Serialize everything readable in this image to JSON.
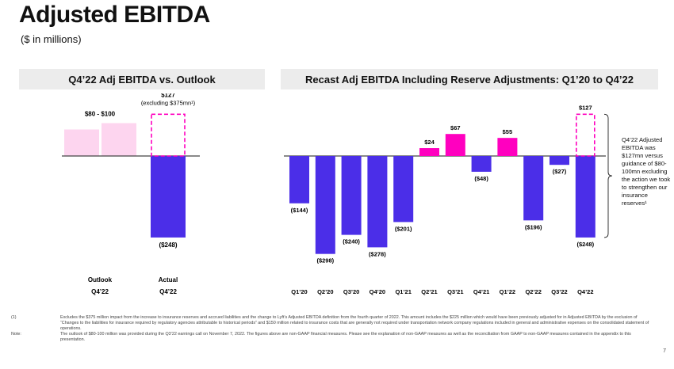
{
  "page": {
    "title": "Adjusted EBITDA",
    "subtitle": "($ in millions)",
    "page_number": "7"
  },
  "panels": {
    "left_title": "Q4’22 Adj EBITDA vs. Outlook",
    "right_title": "Recast Adj EBITDA Including Reserve Adjustments: Q1’20 to Q4’22"
  },
  "colors": {
    "negative_bar": "#4b2ee8",
    "positive_bar": "#ff00bf",
    "outlook_bar": "#fdd5ef",
    "dashed_outline": "#ff00bf",
    "baseline": "#444444"
  },
  "side_note": "Q4’22 Adjusted EBITDA was $127mn versus guidance of $80-100mn excluding the action we took to strengthen our insurance reserves¹",
  "footnotes": [
    {
      "mark": "(1)",
      "text": "Excludes the $375 million impact from the increase to insurance reserves and accrued liabilities and the change to Lyft’s Adjusted EBITDA definition from the fourth quarter of 2022. This amount includes the $225 million which would have been previously adjusted for in Adjusted EBITDA by the exclusion of “Changes to the liabilities for insurance required by regulatory agencies attributable to historical periods” and $150 million related to insurance costs that are generally not required under transportation network company regulations included in general and administrative expenses on the consolidated statement of operations."
    },
    {
      "mark": "Note:",
      "text": "The outlook of $80-100 million was provided during the Q3’22 earnings call on November 7, 2022. The figures above are non-GAAP financial measures. Please see the explanation of non-GAAP measures as well as the reconciliation from GAAP to non-GAAP measures contained in the appendix to this presentation."
    }
  ],
  "chart_data": [
    {
      "type": "bar",
      "title": "Q4’22 Adj EBITDA vs. Outlook",
      "categories": [
        "Outlook",
        "Actual"
      ],
      "sub_categories": [
        "Q4’22",
        "Q4’22"
      ],
      "outlook_range": [
        80,
        100
      ],
      "outlook_label": "$80 - $100",
      "actual_value": -248,
      "actual_label": "($248)",
      "actual_excluding_value": 127,
      "actual_excluding_label_line1": "$127",
      "actual_excluding_label_line2": "(excluding $375mn¹)"
    },
    {
      "type": "bar",
      "title": "Recast Adj EBITDA Including Reserve Adjustments: Q1’20 to Q4’22",
      "categories": [
        "Q1’20",
        "Q2’20",
        "Q3’20",
        "Q4’20",
        "Q1’21",
        "Q2’21",
        "Q3’21",
        "Q4’21",
        "Q1’22",
        "Q2’22",
        "Q3’22",
        "Q4’22"
      ],
      "values": [
        -144,
        -298,
        -240,
        -278,
        -201,
        24,
        67,
        -48,
        55,
        -196,
        -27,
        -248
      ],
      "labels": [
        "($144)",
        "($298)",
        "($240)",
        "($278)",
        "($201)",
        "$24",
        "$67",
        "($48)",
        "$55",
        "($196)",
        "($27)",
        "($248)"
      ],
      "q4_22_excluding_value": 127,
      "q4_22_excluding_label": "$127"
    }
  ]
}
